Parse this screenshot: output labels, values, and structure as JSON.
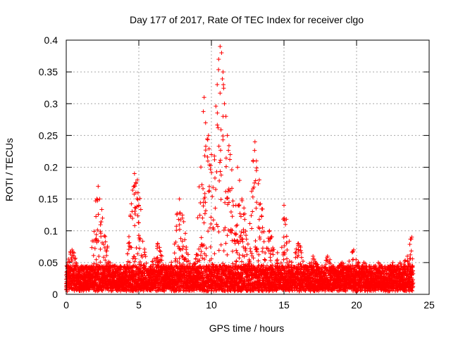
{
  "chart_data": {
    "type": "scatter",
    "title": "Day 177 of 2017, Rate Of TEC Index for receiver clgo",
    "xlabel": "GPS time / hours",
    "ylabel": "ROTI / TECUs",
    "xlim": [
      0,
      25
    ],
    "ylim": [
      0,
      0.4
    ],
    "x_ticks": [
      0,
      5,
      10,
      15,
      20,
      25
    ],
    "y_ticks": [
      0,
      0.05,
      0.1,
      0.15,
      0.2,
      0.25,
      0.3,
      0.35,
      0.4
    ],
    "x_tick_labels": [
      "0",
      "5",
      "10",
      "15",
      "20",
      "25"
    ],
    "y_tick_labels": [
      "0",
      "0.05",
      "0.1",
      "0.15",
      "0.2",
      "0.25",
      "0.3",
      "0.35",
      "0.4"
    ],
    "grid": true,
    "marker": "+",
    "series": [
      {
        "name": "ROTI",
        "color": "#ff0000",
        "x": [
          0.1,
          0.4,
          2.2,
          2.3,
          2.5,
          4.7,
          4.8,
          4.9,
          5.0,
          6.3,
          7.8,
          8.0,
          9.5,
          9.6,
          9.8,
          10.0,
          10.4,
          10.5,
          10.6,
          10.7,
          10.8,
          10.9,
          11.0,
          11.1,
          11.3,
          11.8,
          12.1,
          13.0,
          13.1,
          13.3,
          14.0,
          15.0,
          15.1,
          16.0,
          17.0,
          18.0,
          19.0,
          19.8,
          20.5,
          21.5,
          22.0,
          22.5,
          23.0,
          23.5,
          23.8
        ],
        "y": [
          0.05,
          0.07,
          0.17,
          0.15,
          0.12,
          0.19,
          0.16,
          0.18,
          0.14,
          0.08,
          0.15,
          0.12,
          0.31,
          0.27,
          0.25,
          0.22,
          0.33,
          0.37,
          0.39,
          0.38,
          0.35,
          0.3,
          0.28,
          0.25,
          0.22,
          0.2,
          0.15,
          0.24,
          0.21,
          0.18,
          0.1,
          0.14,
          0.11,
          0.08,
          0.06,
          0.06,
          0.05,
          0.07,
          0.05,
          0.05,
          0.04,
          0.05,
          0.05,
          0.06,
          0.09
        ],
        "baseline_band": [
          0.0,
          0.05
        ]
      }
    ]
  }
}
